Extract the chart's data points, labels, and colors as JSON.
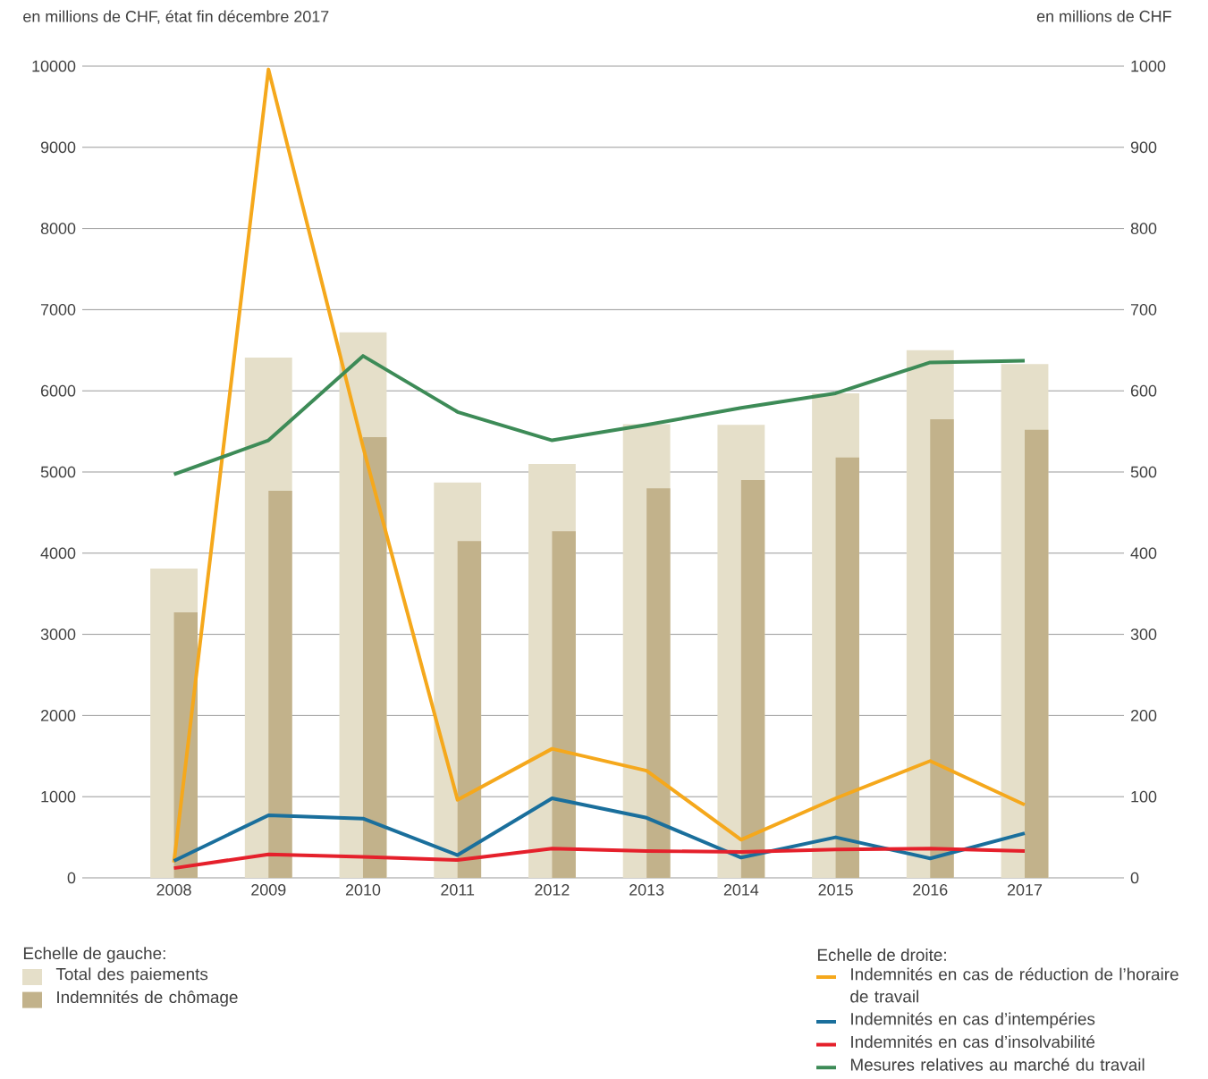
{
  "chart_data": {
    "type": "bar",
    "ylabel": "en millions de CHF, état fin décembre 2017",
    "y2label": "en millions de CHF",
    "categories": [
      "2008",
      "2009",
      "2010",
      "2011",
      "2012",
      "2013",
      "2014",
      "2015",
      "2016",
      "2017"
    ],
    "series": [
      {
        "name": "Total des paiements",
        "axis": "y",
        "color": "#e5dfc9",
        "values": [
          3810,
          6410,
          6720,
          4870,
          5100,
          5590,
          5580,
          5970,
          6500,
          6330
        ]
      },
      {
        "name": "Indemnités de chômage",
        "axis": "y",
        "color": "#c2b28b",
        "values": [
          3270,
          4770,
          5430,
          4150,
          4270,
          4800,
          4900,
          5180,
          5650,
          5520
        ]
      },
      {
        "name": "Indemnités en cas de réduction de l’horaire de travail",
        "type": "line",
        "axis": "y2",
        "color": "#f5a81c",
        "values": [
          19,
          996,
          531,
          96,
          159,
          132,
          47,
          98,
          144,
          90
        ]
      },
      {
        "name": "Indemnités en cas d’intempéries",
        "type": "line",
        "axis": "y2",
        "color": "#1a6f9c",
        "values": [
          21,
          77,
          73,
          28,
          98,
          74,
          25,
          50,
          24,
          55
        ]
      },
      {
        "name": "Indemnités en cas d’insolvabilité",
        "type": "line",
        "axis": "y2",
        "color": "#e5202b",
        "values": [
          12,
          29,
          26,
          22,
          36,
          33,
          32,
          35,
          36,
          33
        ]
      },
      {
        "name": "Mesures relatives au marché du travail",
        "type": "line",
        "axis": "y2",
        "color": "#3d8b57",
        "values": [
          497,
          539,
          643,
          574,
          539,
          558,
          579,
          597,
          635,
          637
        ]
      }
    ],
    "ylim": [
      0,
      10000
    ],
    "yticks": [
      0,
      1000,
      2000,
      3000,
      4000,
      5000,
      6000,
      7000,
      8000,
      9000,
      10000
    ],
    "y2lim": [
      0,
      1000
    ],
    "y2ticks": [
      0,
      100,
      200,
      300,
      400,
      500,
      600,
      700,
      800,
      900,
      1000
    ],
    "grid": "y",
    "legend": "bottom",
    "marker": "none",
    "annotations": [
      "Echelle de gauche:",
      "Echelle de droite:"
    ]
  }
}
